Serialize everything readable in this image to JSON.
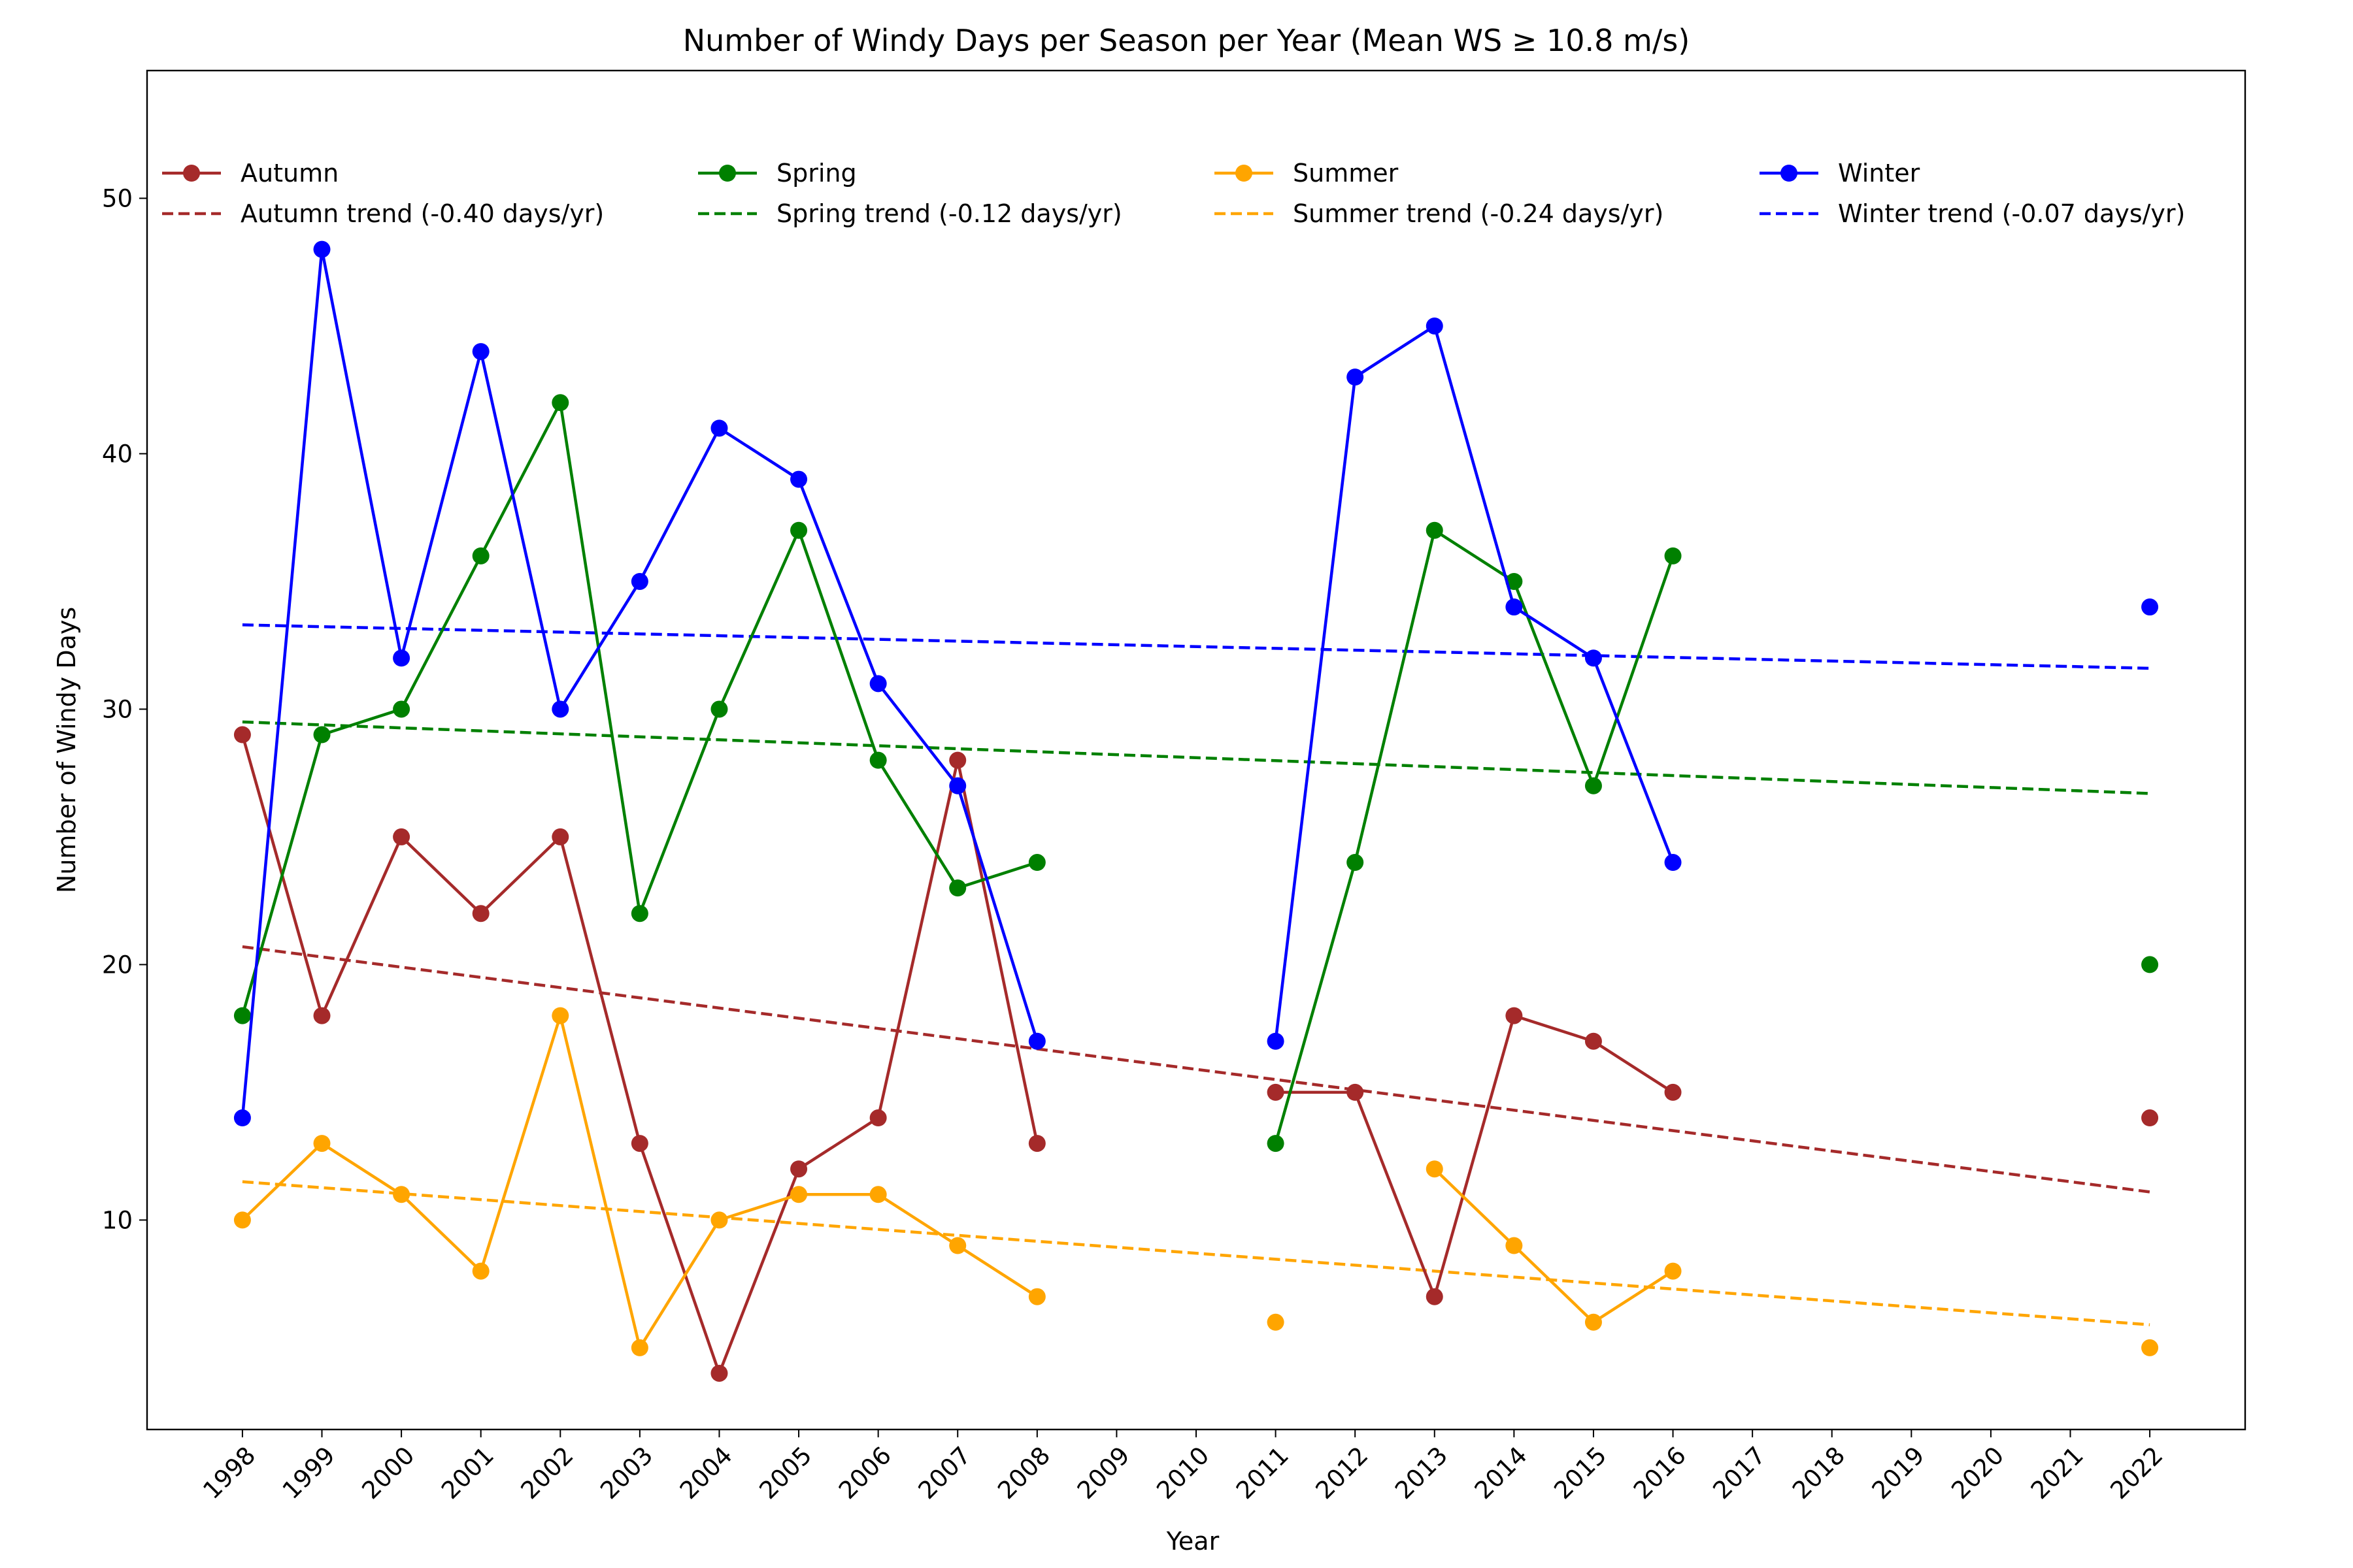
{
  "chart_data": {
    "type": "line",
    "title": "Number of Windy Days per Season per Year (Mean WS ≥ 10.8 m/s)",
    "xlabel": "Year",
    "ylabel": "Number of Windy Days",
    "xlim": [
      1996.8,
      2023.2
    ],
    "ylim": [
      1.8,
      55
    ],
    "xticks": [
      1998,
      1999,
      2000,
      2001,
      2002,
      2003,
      2004,
      2005,
      2006,
      2007,
      2008,
      2009,
      2010,
      2011,
      2012,
      2013,
      2014,
      2015,
      2016,
      2017,
      2018,
      2019,
      2020,
      2021,
      2022
    ],
    "yticks": [
      10,
      20,
      30,
      40,
      50
    ],
    "grid": false,
    "legend_position": "upper, 4 columns",
    "x": [
      1998,
      1999,
      2000,
      2001,
      2002,
      2003,
      2004,
      2005,
      2006,
      2007,
      2008,
      2009,
      2010,
      2011,
      2012,
      2013,
      2014,
      2015,
      2016,
      2017,
      2018,
      2019,
      2020,
      2021,
      2022
    ],
    "series": [
      {
        "name": "Autumn",
        "color": "#a52a2a",
        "values": [
          29,
          18,
          25,
          22,
          25,
          13,
          4,
          12,
          14,
          28,
          13,
          null,
          null,
          15,
          15,
          7,
          18,
          17,
          15,
          null,
          null,
          null,
          null,
          null,
          14
        ],
        "trend": {
          "name": "Autumn trend (-0.40 days/yr)",
          "x": [
            1998,
            2022
          ],
          "y": [
            20.7,
            11.1
          ]
        }
      },
      {
        "name": "Spring",
        "color": "#008000",
        "values": [
          18,
          29,
          30,
          36,
          42,
          22,
          30,
          37,
          28,
          23,
          24,
          null,
          null,
          13,
          24,
          37,
          35,
          27,
          36,
          null,
          null,
          null,
          null,
          null,
          20
        ],
        "trend": {
          "name": "Spring trend (-0.12 days/yr)",
          "x": [
            1998,
            2022
          ],
          "y": [
            29.5,
            26.7
          ]
        }
      },
      {
        "name": "Summer",
        "color": "#ffa500",
        "values": [
          10,
          13,
          11,
          8,
          18,
          5,
          10,
          11,
          11,
          9,
          7,
          null,
          null,
          6,
          null,
          12,
          9,
          6,
          8,
          null,
          null,
          null,
          null,
          null,
          5
        ],
        "trend": {
          "name": "Summer trend (-0.24 days/yr)",
          "x": [
            1998,
            2022
          ],
          "y": [
            11.5,
            5.9
          ]
        }
      },
      {
        "name": "Winter",
        "color": "#0000ff",
        "values": [
          14,
          48,
          32,
          44,
          30,
          35,
          41,
          39,
          31,
          27,
          17,
          null,
          null,
          17,
          43,
          45,
          34,
          32,
          24,
          null,
          null,
          null,
          null,
          null,
          34
        ],
        "trend": {
          "name": "Winter trend (-0.07 days/yr)",
          "x": [
            1998,
            2022
          ],
          "y": [
            33.3,
            31.6
          ]
        }
      }
    ]
  }
}
